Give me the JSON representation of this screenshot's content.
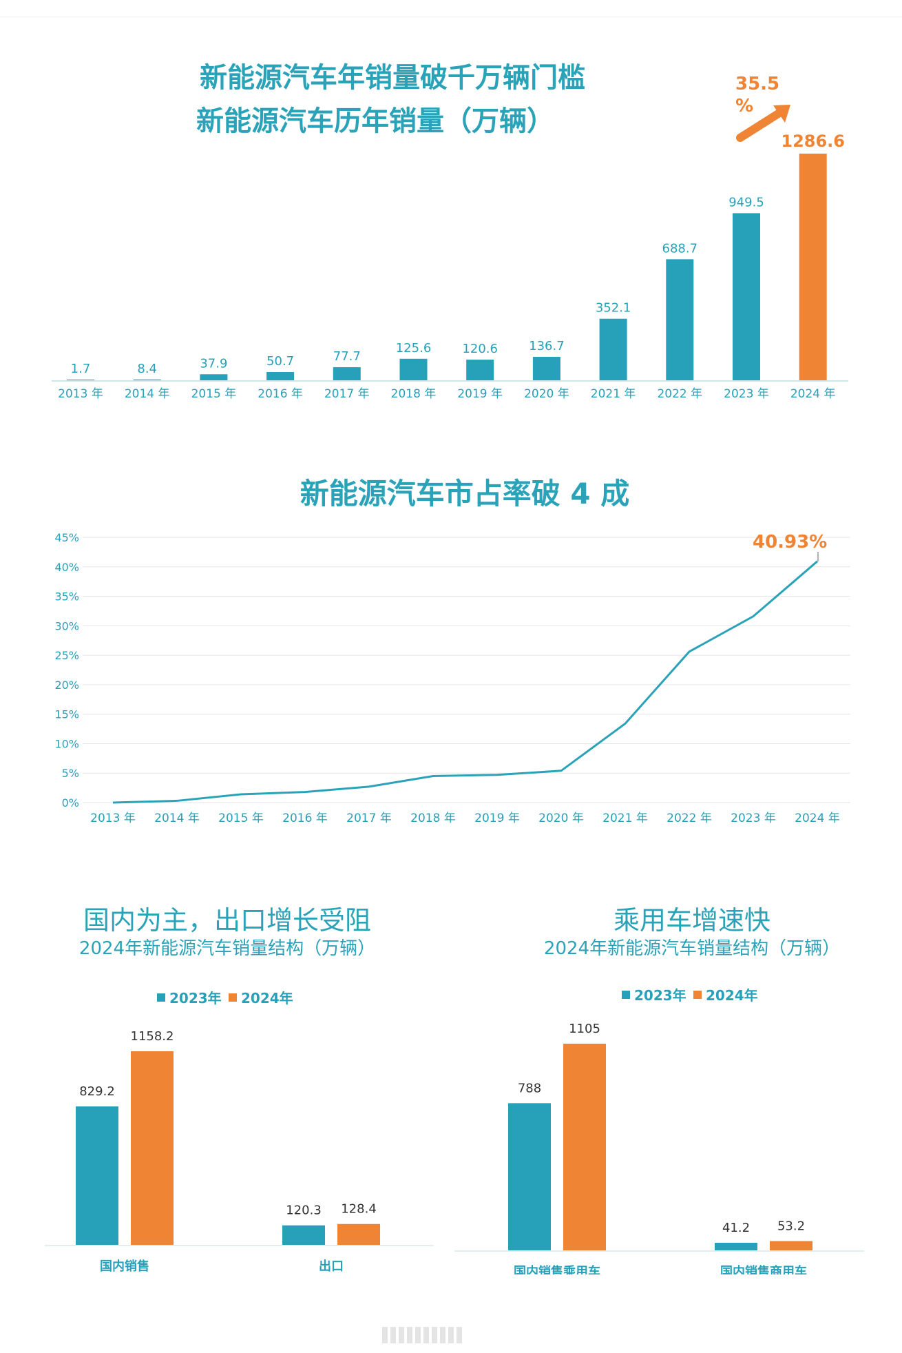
{
  "colors": {
    "teal": "#26a1b9",
    "orange": "#ee8434",
    "axis_text": "#26a1b9",
    "grid": "#e6e6e6"
  },
  "section1": {
    "title": "新能源汽车年销量破千万辆门槛",
    "subtitle": "新能源汽车历年销量（万辆）",
    "growth_value": "35.5",
    "growth_unit": "%"
  },
  "section2": {
    "title": "新能源汽车市占率破 4 成",
    "end_label": "40.93%"
  },
  "section3": {
    "title": "国内为主，出口增长受阻",
    "subtitle": "2024年新能源汽车销量结构（万辆）"
  },
  "section4": {
    "title": "乘用车增速快",
    "subtitle": "2024年新能源汽车销量结构（万辆）"
  },
  "chart_data": [
    {
      "type": "bar",
      "categories": [
        "2013 年",
        "2014 年",
        "2015 年",
        "2016 年",
        "2017 年",
        "2018 年",
        "2019 年",
        "2020 年",
        "2021 年",
        "2022 年",
        "2023 年",
        "2024 年"
      ],
      "values": [
        1.7,
        8.4,
        37.9,
        50.7,
        77.7,
        125.6,
        120.6,
        136.7,
        352.1,
        688.7,
        949.5,
        1286.6
      ],
      "value_labels": [
        "1.7",
        "8.4",
        "37.9",
        "50.7",
        "77.7",
        "125.6",
        "120.6",
        "136.7",
        "352.1",
        "688.7",
        "949.5",
        "1286.6"
      ],
      "ylim": [
        0,
        1286.6
      ],
      "highlight_index": 11
    },
    {
      "type": "line",
      "x": [
        "2013 年",
        "2014 年",
        "2015 年",
        "2016 年",
        "2017 年",
        "2018 年",
        "2019 年",
        "2020 年",
        "2021 年",
        "2022 年",
        "2023 年",
        "2024 年"
      ],
      "y": [
        0.0,
        0.3,
        1.4,
        1.8,
        2.7,
        4.5,
        4.7,
        5.4,
        13.4,
        25.6,
        31.6,
        40.93
      ],
      "ylim": [
        0,
        45
      ],
      "yticks": [
        "0%",
        "5%",
        "10%",
        "15%",
        "20%",
        "25%",
        "30%",
        "35%",
        "40%",
        "45%"
      ],
      "grid": true
    },
    {
      "type": "bar",
      "categories": [
        "国内销售",
        "出口"
      ],
      "series": [
        {
          "name": "2023年",
          "values": [
            829.2,
            120.3
          ],
          "labels": [
            "829.2",
            "120.3"
          ]
        },
        {
          "name": "2024年",
          "values": [
            1158.2,
            128.4
          ],
          "labels": [
            "1158.2",
            "128.4"
          ]
        }
      ],
      "ylim": [
        0,
        1158.2
      ],
      "legend": "top"
    },
    {
      "type": "bar",
      "categories": [
        "国内销售乘用车",
        "国内销售商用车"
      ],
      "series": [
        {
          "name": "2023年",
          "values": [
            788,
            41.2
          ],
          "labels": [
            "788",
            "41.2"
          ]
        },
        {
          "name": "2024年",
          "values": [
            1105,
            53.2
          ],
          "labels": [
            "1105",
            "53.2"
          ]
        }
      ],
      "ylim": [
        0,
        1105
      ],
      "legend": "top"
    }
  ]
}
